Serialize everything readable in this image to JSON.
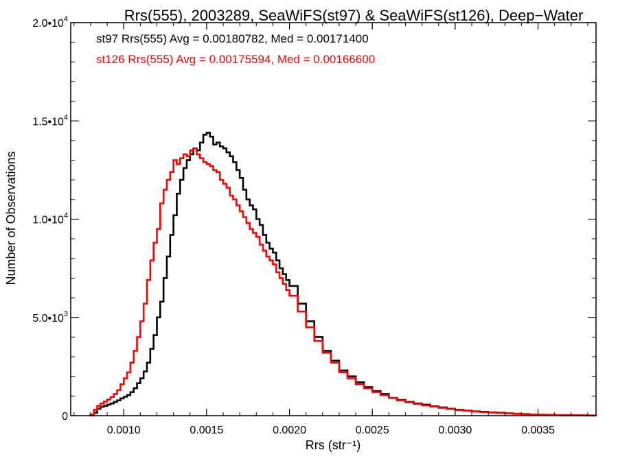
{
  "chart_data": {
    "type": "line",
    "title": "Rrs(555), 2003289, SeaWiFS(st97) & SeaWiFS(st126), Deep−Water",
    "xlabel": "Rrs (str⁻¹)",
    "ylabel": "Number of Observations",
    "xlim": [
      0.00068,
      0.00385
    ],
    "ylim": [
      0,
      20000
    ],
    "x_ticks": [
      {
        "value": 0.001,
        "label": "0.0010"
      },
      {
        "value": 0.0015,
        "label": "0.0015"
      },
      {
        "value": 0.002,
        "label": "0.0020"
      },
      {
        "value": 0.0025,
        "label": "0.0025"
      },
      {
        "value": 0.003,
        "label": "0.0030"
      },
      {
        "value": 0.0035,
        "label": "0.0035"
      }
    ],
    "y_ticks": [
      {
        "value": 0,
        "mant": "0",
        "exp": ""
      },
      {
        "value": 5000,
        "mant": "5.0•10",
        "exp": "3"
      },
      {
        "value": 10000,
        "mant": "1.0•10",
        "exp": "4"
      },
      {
        "value": 15000,
        "mant": "1.5•10",
        "exp": "4"
      },
      {
        "value": 20000,
        "mant": "2.0•10",
        "exp": "4"
      }
    ],
    "grid": false,
    "legend_position": "top-left",
    "annotations": [
      {
        "text": "st97 Rrs(555) Avg = 0.00180782, Med = 0.00171400",
        "color": "#000000"
      },
      {
        "text": "st126 Rrs(555) Avg = 0.00175594, Med = 0.00166600",
        "color": "#ff0000"
      }
    ],
    "series": [
      {
        "color": "#000000",
        "x": [
          0.0008,
          0.00082,
          0.00084,
          0.00086,
          0.00088,
          0.0009,
          0.00092,
          0.00094,
          0.00096,
          0.00098,
          0.001,
          0.00102,
          0.00104,
          0.00106,
          0.00108,
          0.0011,
          0.00112,
          0.00114,
          0.00116,
          0.00118,
          0.0012,
          0.00122,
          0.00124,
          0.00126,
          0.00128,
          0.0013,
          0.00132,
          0.00134,
          0.00136,
          0.00138,
          0.0014,
          0.00142,
          0.00144,
          0.00146,
          0.00148,
          0.0015,
          0.00152,
          0.00154,
          0.00156,
          0.00158,
          0.0016,
          0.00162,
          0.00164,
          0.00166,
          0.00168,
          0.0017,
          0.00172,
          0.00174,
          0.00176,
          0.00178,
          0.0018,
          0.00182,
          0.00184,
          0.00186,
          0.00188,
          0.0019,
          0.00192,
          0.00194,
          0.00196,
          0.00198,
          0.002,
          0.00205,
          0.0021,
          0.00215,
          0.0022,
          0.00225,
          0.0023,
          0.00235,
          0.0024,
          0.00245,
          0.0025,
          0.00255,
          0.0026,
          0.00265,
          0.0027,
          0.00275,
          0.0028,
          0.00285,
          0.0029,
          0.00295,
          0.003,
          0.00305,
          0.0031,
          0.00315,
          0.0032,
          0.00325,
          0.0033,
          0.00335,
          0.0034,
          0.00345,
          0.0035,
          0.00355,
          0.0036,
          0.00365,
          0.0037,
          0.00375,
          0.0038,
          0.00385
        ],
        "y": [
          20,
          150,
          350,
          450,
          500,
          560,
          620,
          700,
          780,
          880,
          960,
          1050,
          1200,
          1400,
          1650,
          1900,
          2250,
          2700,
          3400,
          4100,
          5000,
          5800,
          7000,
          8100,
          9200,
          10200,
          11300,
          12000,
          12600,
          13000,
          13300,
          13600,
          13500,
          13900,
          14300,
          14400,
          14200,
          13800,
          13900,
          13700,
          13600,
          13400,
          13200,
          12900,
          12500,
          12100,
          11500,
          11000,
          10700,
          10500,
          10000,
          9700,
          9200,
          8800,
          8500,
          8300,
          7900,
          7500,
          7200,
          6900,
          6600,
          5700,
          4800,
          4000,
          3300,
          2800,
          2300,
          2000,
          1700,
          1450,
          1250,
          1100,
          900,
          800,
          700,
          620,
          560,
          480,
          420,
          350,
          300,
          260,
          220,
          200,
          170,
          150,
          120,
          100,
          80,
          60,
          50,
          40,
          30,
          25,
          20,
          15,
          10,
          5
        ]
      },
      {
        "color": "#ff0000",
        "x": [
          0.0008,
          0.00082,
          0.00084,
          0.00086,
          0.00088,
          0.0009,
          0.00092,
          0.00094,
          0.00096,
          0.00098,
          0.001,
          0.00102,
          0.00104,
          0.00106,
          0.00108,
          0.0011,
          0.00112,
          0.00114,
          0.00116,
          0.00118,
          0.0012,
          0.00122,
          0.00124,
          0.00126,
          0.00128,
          0.0013,
          0.00132,
          0.00134,
          0.00136,
          0.00138,
          0.0014,
          0.00142,
          0.00144,
          0.00146,
          0.00148,
          0.0015,
          0.00152,
          0.00154,
          0.00156,
          0.00158,
          0.0016,
          0.00162,
          0.00164,
          0.00166,
          0.00168,
          0.0017,
          0.00172,
          0.00174,
          0.00176,
          0.00178,
          0.0018,
          0.00182,
          0.00184,
          0.00186,
          0.00188,
          0.0019,
          0.00192,
          0.00194,
          0.00196,
          0.00198,
          0.002,
          0.00205,
          0.0021,
          0.00215,
          0.0022,
          0.00225,
          0.0023,
          0.00235,
          0.0024,
          0.00245,
          0.0025,
          0.00255,
          0.0026,
          0.00265,
          0.0027,
          0.00275,
          0.0028,
          0.00285,
          0.0029,
          0.00295,
          0.003,
          0.00305,
          0.0031,
          0.00315,
          0.0032,
          0.00325,
          0.0033,
          0.00335,
          0.0034,
          0.00345,
          0.0035,
          0.00355,
          0.0036,
          0.00365,
          0.0037,
          0.00375,
          0.0038,
          0.00385
        ],
        "y": [
          60,
          300,
          500,
          620,
          720,
          820,
          950,
          1100,
          1300,
          1600,
          1900,
          2200,
          2700,
          3300,
          4000,
          4800,
          5700,
          6900,
          7900,
          8800,
          9500,
          10800,
          11500,
          12000,
          12400,
          13000,
          12800,
          13100,
          13300,
          13200,
          13500,
          13600,
          13300,
          13100,
          12900,
          12800,
          12700,
          12500,
          12400,
          12000,
          11800,
          11600,
          11200,
          11000,
          10700,
          10400,
          10100,
          9800,
          9500,
          9300,
          9100,
          8700,
          8400,
          8100,
          7900,
          7700,
          7300,
          7000,
          6700,
          6400,
          6100,
          5300,
          4500,
          3800,
          3200,
          2700,
          2200,
          1900,
          1600,
          1400,
          1200,
          1050,
          900,
          780,
          680,
          600,
          520,
          460,
          400,
          340,
          290,
          250,
          210,
          180,
          160,
          140,
          110,
          90,
          70,
          55,
          45,
          35,
          25,
          20,
          15,
          12,
          8,
          4
        ]
      }
    ]
  }
}
